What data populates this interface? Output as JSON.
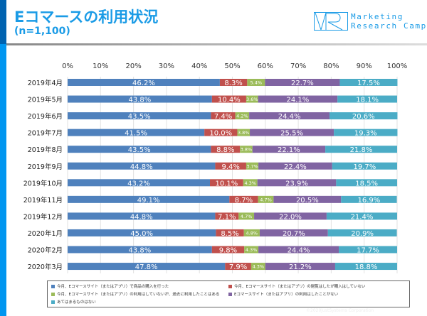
{
  "header": {
    "title": "Eコマースの利用状況",
    "subtitle": "(n=1,100)",
    "logo_text_1": "Marketing",
    "logo_text_2": "Research Camp"
  },
  "copyright": "©2020JustSystems Corporation",
  "chart_data": {
    "type": "bar",
    "orientation": "horizontal",
    "stacked": true,
    "categories": [
      "2019年4月",
      "2019年5月",
      "2019年6月",
      "2019年7月",
      "2019年8月",
      "2019年9月",
      "2019年10月",
      "2019年11月",
      "2019年12月",
      "2020年1月",
      "2020年2月",
      "2020年3月"
    ],
    "xlim": [
      0,
      100
    ],
    "xticks": [
      "0%",
      "10%",
      "20%",
      "30%",
      "40%",
      "50%",
      "60%",
      "70%",
      "80%",
      "90%",
      "100%"
    ],
    "grid": true,
    "legend_position": "bottom",
    "series": [
      {
        "name": "今月、Eコマースサイト（またはアプリ）で商品の購入を行った",
        "color": "#4f81bd",
        "values": [
          46.2,
          43.8,
          43.5,
          41.5,
          43.5,
          44.8,
          43.2,
          49.1,
          44.8,
          45.0,
          43.8,
          47.8
        ]
      },
      {
        "name": "今月、Eコマースサイト（またはアプリ）の閲覧はしたが購入はしていない",
        "color": "#c0504d",
        "values": [
          8.3,
          10.4,
          7.4,
          10.0,
          8.8,
          9.4,
          10.1,
          8.7,
          7.1,
          8.5,
          9.8,
          7.9
        ]
      },
      {
        "name": "今月、Eコマースサイト（またはアプリ）の利用はしていないが、過去に利用したことはある",
        "color": "#9bbb59",
        "values": [
          5.4,
          3.6,
          4.2,
          3.8,
          3.8,
          3.7,
          4.3,
          4.7,
          4.7,
          4.8,
          4.3,
          4.3
        ]
      },
      {
        "name": "Eコマースサイト（またはアプリ）の利用はしたことがない",
        "color": "#8064a2",
        "values": [
          22.7,
          24.1,
          24.4,
          25.5,
          22.1,
          22.4,
          23.9,
          20.5,
          22.0,
          20.7,
          24.4,
          21.2
        ]
      },
      {
        "name": "あてはまるものはない",
        "color": "#4bacc6",
        "values": [
          17.5,
          18.1,
          20.6,
          19.3,
          21.8,
          19.7,
          18.5,
          16.9,
          21.4,
          20.9,
          17.7,
          18.8
        ]
      }
    ]
  }
}
